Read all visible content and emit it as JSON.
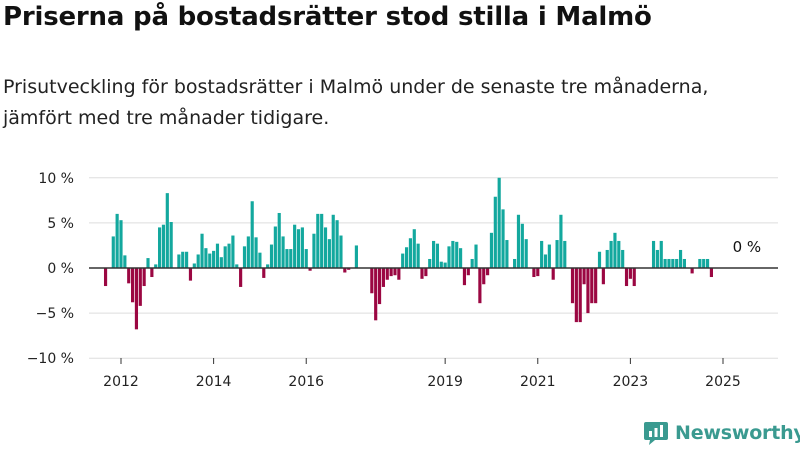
{
  "header": {
    "title": "Priserna på bostadsrätter stod stilla i Malmö",
    "subtitle": "Prisutveckling för bostadsrätter i Malmö under de senaste tre månaderna, jämfört med tre månader tidigare."
  },
  "brand": {
    "name": "Newsworthy",
    "icon": "newsworthy-logo-icon",
    "color": "#3a9a90"
  },
  "chart_data": {
    "type": "bar",
    "title": "",
    "xlabel": "",
    "ylabel": "",
    "x_start": 2011.6667,
    "x_step": 0.0833333,
    "ylim": [
      -10,
      10
    ],
    "yticks": [
      10,
      5,
      0,
      -5,
      -10
    ],
    "ytick_labels": [
      "10 %",
      "5 %",
      "0 %",
      "−5 %",
      "−10 %"
    ],
    "xticks": [
      2012,
      2014,
      2016,
      2019,
      2021,
      2023,
      2025
    ],
    "xtick_labels": [
      "2012",
      "2014",
      "2016",
      "2019",
      "2021",
      "2023",
      "2025"
    ],
    "grid": true,
    "colors": {
      "positive": "#13a89e",
      "negative": "#9b0742",
      "grid": "#dddddd",
      "axis": "#333333"
    },
    "annotation": {
      "label": "0 %",
      "x": 2025.3,
      "y": 0
    },
    "values": [
      -2,
      0,
      3.5,
      6,
      5.3,
      1.4,
      -1.7,
      -3.8,
      -6.8,
      -4.2,
      -2,
      1.1,
      -1,
      0.4,
      4.5,
      4.8,
      8.3,
      5.1,
      0,
      1.5,
      1.8,
      1.8,
      -1.4,
      0.5,
      1.5,
      3.8,
      2.2,
      1.6,
      1.9,
      2.7,
      1.2,
      2.4,
      2.7,
      3.6,
      0.4,
      -2.1,
      2.4,
      3.5,
      7.4,
      3.4,
      1.7,
      -1.1,
      0.4,
      2.6,
      4.6,
      6.1,
      3.5,
      2.1,
      2.1,
      4.8,
      4.3,
      4.5,
      2.1,
      -0.3,
      3.8,
      6,
      6,
      4.5,
      3.2,
      5.9,
      5.3,
      3.6,
      -0.5,
      -0.2,
      0,
      2.5,
      0,
      0,
      0,
      -2.8,
      -5.8,
      -4,
      -2.1,
      -1.3,
      -0.9,
      -0.8,
      -1.3,
      1.6,
      2.3,
      3.3,
      4.3,
      2.7,
      -1.2,
      -0.9,
      1,
      3,
      2.7,
      0.7,
      0.6,
      2.4,
      3,
      2.9,
      2.2,
      -1.9,
      -0.8,
      1,
      2.6,
      -3.9,
      -1.8,
      -0.8,
      3.9,
      7.9,
      10,
      6.5,
      3.1,
      0,
      1,
      5.9,
      4.9,
      3.2,
      0,
      -1,
      -0.9,
      3,
      1.5,
      2.6,
      -1.3,
      3.1,
      5.9,
      3,
      0,
      -3.9,
      -6,
      -6,
      -1.8,
      -5,
      -3.9,
      -3.9,
      1.8,
      -1.8,
      2,
      3,
      3.9,
      3,
      2,
      -2,
      -1.2,
      -2,
      0,
      0,
      0,
      0,
      3,
      2,
      3,
      1,
      1,
      1,
      1,
      2,
      1,
      0,
      -0.6,
      0,
      1,
      1,
      1,
      -1,
      0
    ]
  }
}
